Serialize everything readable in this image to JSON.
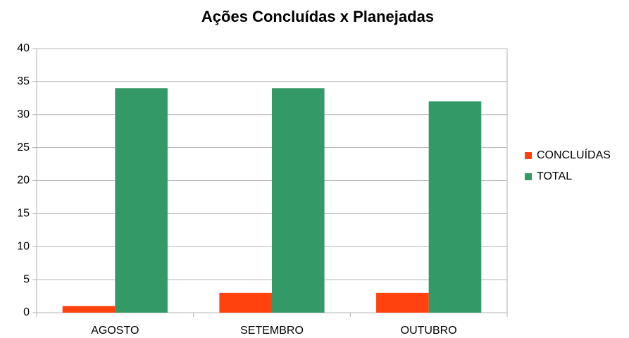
{
  "chart_data": {
    "type": "bar",
    "title": "Ações Concluídas x Planejadas",
    "categories": [
      "AGOSTO",
      "SETEMBRO",
      "OUTUBRO"
    ],
    "series": [
      {
        "name": "CONCLUÍDAS",
        "color": "#ff420e",
        "values": [
          1,
          3,
          3
        ]
      },
      {
        "name": "TOTAL",
        "color": "#339966",
        "values": [
          34,
          34,
          32
        ]
      }
    ],
    "ylim": [
      0,
      40
    ],
    "yticks": [
      0,
      5,
      10,
      15,
      20,
      25,
      30,
      35,
      40
    ],
    "grid": true,
    "legend": "right"
  }
}
